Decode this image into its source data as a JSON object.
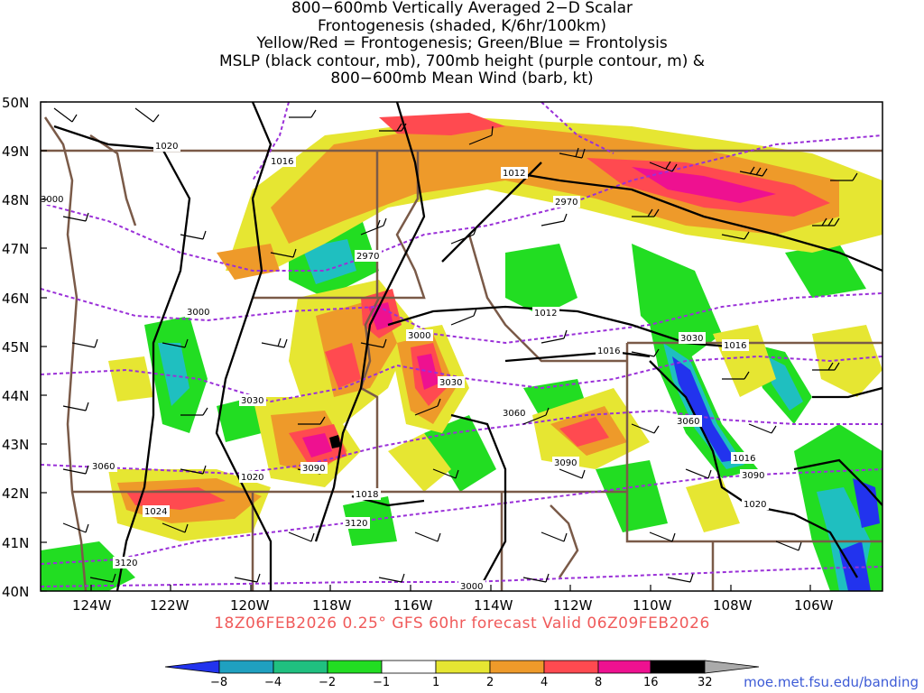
{
  "title_lines": [
    "800−600mb Vertically Averaged 2−D Scalar",
    "Frontogenesis (shaded, K/6hr/100km)",
    "Yellow/Red = Frontogenesis;  Green/Blue = Frontolysis",
    "MSLP (black contour, mb), 700mb height (purple contour, m) &",
    "800−600mb Mean Wind (barb, kt)"
  ],
  "lat_labels": [
    "50N",
    "49N",
    "48N",
    "47N",
    "46N",
    "45N",
    "44N",
    "43N",
    "42N",
    "41N",
    "40N"
  ],
  "lon_labels": [
    "124W",
    "122W",
    "120W",
    "118W",
    "116W",
    "114W",
    "112W",
    "110W",
    "108W",
    "106W"
  ],
  "footer": "18Z06FEB2026 0.25° GFS 60hr forecast Valid 06Z09FEB2026",
  "credit": "moe.met.fsu.edu/banding",
  "colorbar": {
    "ticks": [
      "−8",
      "−4",
      "−2",
      "−1",
      "1",
      "2",
      "4",
      "8",
      "16",
      "32"
    ],
    "colors": [
      "#2233ee",
      "#1fa0c0",
      "#20c080",
      "#22dd22",
      "#ffffff",
      "#e6e632",
      "#ee9a2a",
      "#ff4a50",
      "#ee1190",
      "#000000",
      "#aaaaaa"
    ]
  },
  "colors": {
    "frontolysis_strong": "#2233ee",
    "frontolysis_cyan": "#1fbfc0",
    "frontolysis_green": "#22dd22",
    "frontogenesis_yellow": "#e6e632",
    "frontogenesis_orange": "#ee9a2a",
    "frontogenesis_red": "#ff4a50",
    "frontogenesis_magenta": "#ee1190",
    "mslp_contour": "#000000",
    "height_contour": "#9a30d8",
    "borders": "#7a5a48"
  },
  "mslp_labels": [
    "1020",
    "1016",
    "1012",
    "1012",
    "1016",
    "1016",
    "1016",
    "1020",
    "1024",
    "1018",
    "1020"
  ],
  "height_labels": [
    "3000",
    "2970",
    "2970",
    "3000",
    "3000",
    "3030",
    "3030",
    "3030",
    "3060",
    "3060",
    "3060",
    "3090",
    "3090",
    "3090",
    "3120",
    "3120",
    "3000"
  ]
}
